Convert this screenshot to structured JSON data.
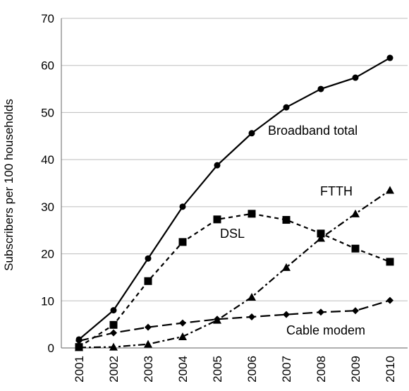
{
  "chart_data": {
    "type": "line",
    "title": "",
    "xlabel": "",
    "ylabel": "Subscribers per 100 households",
    "ylim": [
      0,
      70
    ],
    "yticks": [
      0,
      10,
      20,
      30,
      40,
      50,
      60,
      70
    ],
    "grid": "horizontal",
    "legend": "none",
    "x": [
      "2001",
      "2002",
      "2003",
      "2004",
      "2005",
      "2006",
      "2007",
      "2008",
      "2009",
      "2010"
    ],
    "series": [
      {
        "name": "Broadband total",
        "marker": "circle",
        "dash": "solid",
        "values": [
          1.8,
          8.0,
          19.0,
          30.0,
          38.8,
          45.6,
          51.1,
          55.0,
          57.4,
          61.6
        ]
      },
      {
        "name": "DSL",
        "marker": "square",
        "dash": "dashed",
        "values": [
          0.2,
          4.9,
          14.2,
          22.5,
          27.3,
          28.5,
          27.2,
          24.3,
          21.1,
          18.3
        ]
      },
      {
        "name": "FTTH",
        "marker": "triangle",
        "dash": "dashdot",
        "values": [
          0.1,
          0.2,
          0.8,
          2.4,
          5.9,
          10.8,
          17.1,
          23.3,
          28.5,
          33.5
        ]
      },
      {
        "name": "Cable modem",
        "marker": "diamond",
        "dash": "longdash",
        "values": [
          1.5,
          3.2,
          4.4,
          5.3,
          6.1,
          6.6,
          7.1,
          7.6,
          7.9,
          10.1
        ]
      }
    ]
  }
}
